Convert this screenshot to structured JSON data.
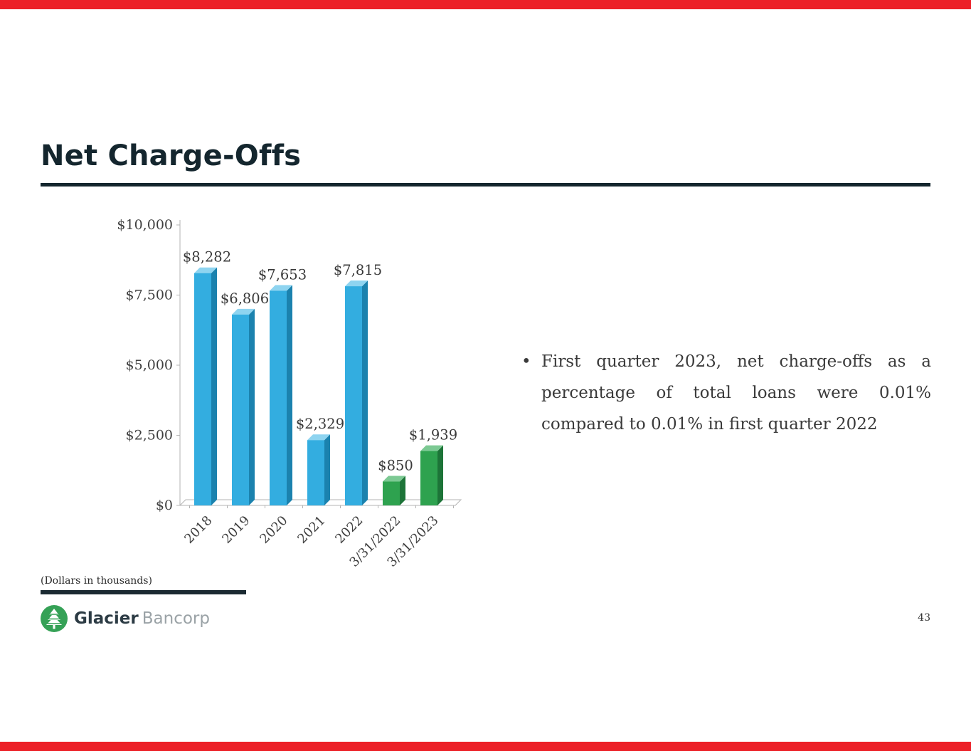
{
  "slide": {
    "title": "Net Charge-Offs",
    "footnote": "(Dollars in thousands)",
    "page_number": "43",
    "colors": {
      "accent_red": "#ec2027",
      "ink": "#14262e"
    }
  },
  "logo": {
    "brand_bold": "Glacier",
    "brand_light": "Bancorp",
    "icon_color": "#35a156"
  },
  "bullet": {
    "marker": "•",
    "lines": [
      "First quarter 2023, net charge-offs as a",
      "percentage of total loans were 0.01%",
      "compared to 0.01% in first quarter 2022"
    ]
  },
  "chart_data": {
    "type": "bar",
    "title": "",
    "xlabel": "",
    "ylabel": "",
    "categories": [
      "2018",
      "2019",
      "2020",
      "2021",
      "2022",
      "3/31/2022",
      "3/31/2023"
    ],
    "values": [
      8282,
      6806,
      7653,
      2329,
      7815,
      850,
      1939
    ],
    "labels": [
      "$8,282",
      "$6,806",
      "$7,653",
      "$2,329",
      "$7,815",
      "$850",
      "$1,939"
    ],
    "bar_colors": [
      "#33ade0",
      "#33ade0",
      "#33ade0",
      "#33ade0",
      "#33ade0",
      "#2ea24f",
      "#2ea24f"
    ],
    "bar_tops": [
      "#8ed4f0",
      "#8ed4f0",
      "#8ed4f0",
      "#8ed4f0",
      "#8ed4f0",
      "#7cc993",
      "#7cc993"
    ],
    "bar_sides": [
      "#1b82ae",
      "#1b82ae",
      "#1b82ae",
      "#1b82ae",
      "#1b82ae",
      "#1d7438",
      "#1d7438"
    ],
    "y_tick_labels": [
      "$10,000",
      "$7,500",
      "$5,000",
      "$2,500",
      "$0"
    ],
    "y_tick_values": [
      10000,
      7500,
      5000,
      2500,
      0
    ],
    "ylim": [
      0,
      10000
    ],
    "grid": false,
    "legend": "none"
  }
}
